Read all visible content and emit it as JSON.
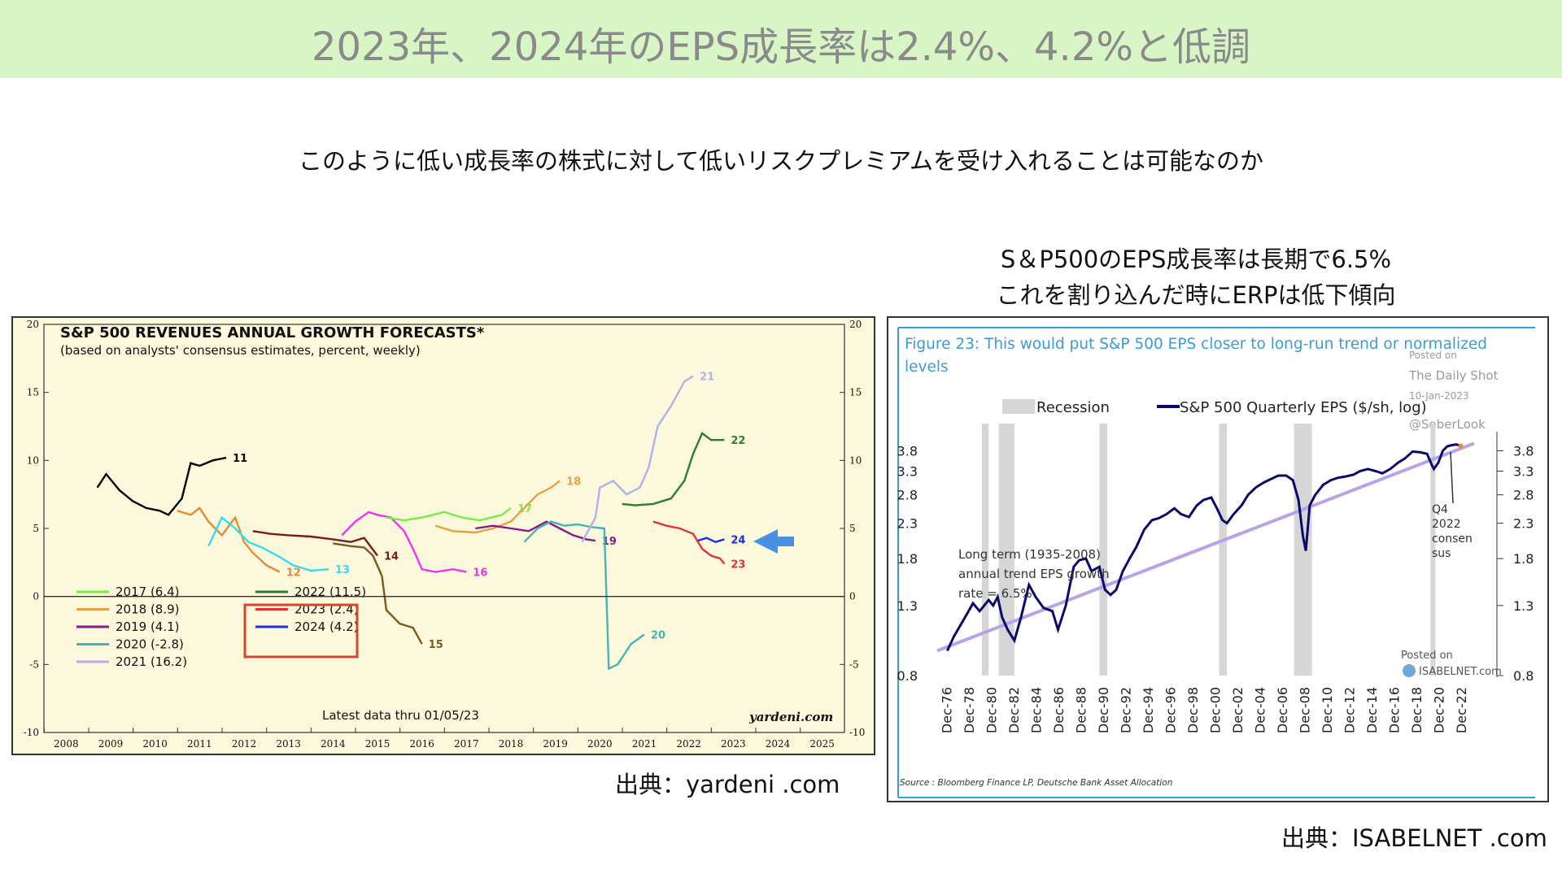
{
  "header": {
    "title": "2023年、2024年のEPS成長率は2.4%、4.2%と低調"
  },
  "subtitle": "このように低い成長率の株式に対して低いリスクプレミアムを受け入れることは可能なのか",
  "right_note": {
    "line1": "S＆P500のEPS成長率は長期で6.5%",
    "line2": "これを割り込んだ時にERPは低下傾向"
  },
  "sources": {
    "left": "出典：yardeni .com",
    "right": "出典：ISABELNET .com"
  },
  "colors": {
    "title_bg": "#d8f5c6",
    "chart_bg": "#fbf8dc",
    "arrow": "#4a90e2",
    "highlight_box": "#d9442c",
    "trend": "#b9a2e8",
    "eps_line": "#0a0a6e",
    "recession": "#d6d6d6",
    "right_title": "#3a9bd5"
  },
  "chart_data": [
    {
      "type": "line",
      "title": "S&P 500 REVENUES ANNUAL GROWTH FORECASTS*",
      "subtitle": "(based on analysts' consensus estimates, percent, weekly)",
      "note": "Latest data thru 01/05/23",
      "watermark": "yardeni.com",
      "xticks": [
        "2008",
        "2009",
        "2010",
        "2011",
        "2012",
        "2013",
        "2014",
        "2015",
        "2016",
        "2017",
        "2018",
        "2019",
        "2020",
        "2021",
        "2022",
        "2023",
        "2024",
        "2025"
      ],
      "yticks": [
        "20",
        "15",
        "10",
        "5",
        "0",
        "-5",
        "-10"
      ],
      "ylim": [
        -10,
        20
      ],
      "xlim": [
        2007.5,
        2025.5
      ],
      "legend": [
        "2017 (6.4)",
        "2018 (8.9)",
        "2019 (4.1)",
        "2020 (-2.8)",
        "2021 (16.2)",
        "2022 (11.5)",
        "2023 (2.4)",
        "2024 (4.2)"
      ],
      "series": [
        {
          "label": "11",
          "color": "#000000",
          "points": [
            [
              2008.7,
              8.0
            ],
            [
              2008.9,
              9.0
            ],
            [
              2009.2,
              7.8
            ],
            [
              2009.5,
              7.0
            ],
            [
              2009.8,
              6.5
            ],
            [
              2010.1,
              6.3
            ],
            [
              2010.3,
              6.0
            ],
            [
              2010.6,
              7.2
            ],
            [
              2010.8,
              9.8
            ],
            [
              2011.0,
              9.6
            ],
            [
              2011.3,
              10.0
            ],
            [
              2011.6,
              10.2
            ]
          ]
        },
        {
          "label": "12",
          "color": "#e58a33",
          "points": [
            [
              2010.5,
              6.3
            ],
            [
              2010.8,
              6.0
            ],
            [
              2011.0,
              6.5
            ],
            [
              2011.2,
              5.5
            ],
            [
              2011.5,
              4.5
            ],
            [
              2011.8,
              5.8
            ],
            [
              2012.0,
              4.0
            ],
            [
              2012.2,
              3.2
            ],
            [
              2012.5,
              2.3
            ],
            [
              2012.8,
              1.8
            ]
          ]
        },
        {
          "label": "13",
          "color": "#33ddee",
          "points": [
            [
              2011.2,
              3.7
            ],
            [
              2011.5,
              5.8
            ],
            [
              2011.8,
              5.0
            ],
            [
              2012.1,
              4.0
            ],
            [
              2012.4,
              3.6
            ],
            [
              2012.8,
              2.9
            ],
            [
              2013.1,
              2.3
            ],
            [
              2013.5,
              1.9
            ],
            [
              2013.9,
              2.0
            ]
          ]
        },
        {
          "label": "14",
          "color": "#7a1c1c",
          "points": [
            [
              2012.2,
              4.8
            ],
            [
              2012.6,
              4.6
            ],
            [
              2013.0,
              4.5
            ],
            [
              2013.5,
              4.4
            ],
            [
              2014.0,
              4.2
            ],
            [
              2014.4,
              4.0
            ],
            [
              2014.7,
              4.3
            ],
            [
              2015.0,
              3.0
            ]
          ]
        },
        {
          "label": "15",
          "color": "#7b5a22",
          "points": [
            [
              2014.0,
              3.9
            ],
            [
              2014.4,
              3.7
            ],
            [
              2014.7,
              3.6
            ],
            [
              2014.9,
              3.0
            ],
            [
              2015.1,
              1.5
            ],
            [
              2015.2,
              -1.0
            ],
            [
              2015.5,
              -2.0
            ],
            [
              2015.8,
              -2.3
            ],
            [
              2016.0,
              -3.5
            ]
          ]
        },
        {
          "label": "16",
          "color": "#ee33ee",
          "points": [
            [
              2014.2,
              4.5
            ],
            [
              2014.5,
              5.5
            ],
            [
              2014.8,
              6.2
            ],
            [
              2015.0,
              6.0
            ],
            [
              2015.3,
              5.8
            ],
            [
              2015.6,
              4.8
            ],
            [
              2015.8,
              3.5
            ],
            [
              2016.0,
              2.0
            ],
            [
              2016.3,
              1.8
            ],
            [
              2016.7,
              2.0
            ],
            [
              2017.0,
              1.8
            ]
          ]
        },
        {
          "label": "17",
          "color": "#77ee44",
          "points": [
            [
              2015.2,
              5.8
            ],
            [
              2015.6,
              5.6
            ],
            [
              2016.0,
              5.8
            ],
            [
              2016.5,
              6.2
            ],
            [
              2016.9,
              5.8
            ],
            [
              2017.3,
              5.6
            ],
            [
              2017.8,
              6.0
            ],
            [
              2018.0,
              6.5
            ]
          ]
        },
        {
          "label": "18",
          "color": "#e8a040",
          "points": [
            [
              2016.3,
              5.2
            ],
            [
              2016.7,
              4.8
            ],
            [
              2017.2,
              4.7
            ],
            [
              2017.6,
              5.0
            ],
            [
              2018.0,
              5.5
            ],
            [
              2018.3,
              6.5
            ],
            [
              2018.6,
              7.5
            ],
            [
              2018.9,
              8.0
            ],
            [
              2019.1,
              8.5
            ]
          ]
        },
        {
          "label": "19",
          "color": "#8a1a8a",
          "points": [
            [
              2017.2,
              5.0
            ],
            [
              2017.6,
              5.2
            ],
            [
              2018.0,
              5.0
            ],
            [
              2018.4,
              4.8
            ],
            [
              2018.8,
              5.5
            ],
            [
              2019.1,
              5.0
            ],
            [
              2019.4,
              4.5
            ],
            [
              2019.7,
              4.2
            ],
            [
              2019.9,
              4.1
            ]
          ]
        },
        {
          "label": "20",
          "color": "#44b5b5",
          "points": [
            [
              2018.3,
              4.0
            ],
            [
              2018.6,
              5.0
            ],
            [
              2018.9,
              5.5
            ],
            [
              2019.2,
              5.2
            ],
            [
              2019.5,
              5.3
            ],
            [
              2019.8,
              5.1
            ],
            [
              2020.1,
              5.0
            ],
            [
              2020.2,
              -5.3
            ],
            [
              2020.4,
              -5.0
            ],
            [
              2020.7,
              -3.5
            ],
            [
              2021.0,
              -2.8
            ]
          ]
        },
        {
          "label": "21",
          "color": "#b0b0ee",
          "points": [
            [
              2019.6,
              4.0
            ],
            [
              2019.9,
              5.8
            ],
            [
              2020.0,
              8.0
            ],
            [
              2020.3,
              8.5
            ],
            [
              2020.6,
              7.5
            ],
            [
              2020.9,
              8.0
            ],
            [
              2021.1,
              9.5
            ],
            [
              2021.3,
              12.5
            ],
            [
              2021.6,
              14.0
            ],
            [
              2021.9,
              15.8
            ],
            [
              2022.1,
              16.2
            ]
          ]
        },
        {
          "label": "22",
          "color": "#2e7d2e",
          "points": [
            [
              2020.5,
              6.8
            ],
            [
              2020.8,
              6.7
            ],
            [
              2021.2,
              6.8
            ],
            [
              2021.6,
              7.2
            ],
            [
              2021.9,
              8.5
            ],
            [
              2022.1,
              10.5
            ],
            [
              2022.3,
              12.0
            ],
            [
              2022.5,
              11.5
            ],
            [
              2022.8,
              11.5
            ]
          ]
        },
        {
          "label": "23",
          "color": "#e53333",
          "points": [
            [
              2021.2,
              5.5
            ],
            [
              2021.5,
              5.2
            ],
            [
              2021.8,
              5.0
            ],
            [
              2022.1,
              4.6
            ],
            [
              2022.3,
              3.5
            ],
            [
              2022.5,
              3.0
            ],
            [
              2022.7,
              2.8
            ],
            [
              2022.8,
              2.4
            ]
          ]
        },
        {
          "label": "24",
          "color": "#1a2ee5",
          "points": [
            [
              2022.2,
              4.1
            ],
            [
              2022.4,
              4.3
            ],
            [
              2022.6,
              4.0
            ],
            [
              2022.8,
              4.2
            ]
          ]
        }
      ]
    },
    {
      "type": "line",
      "title": "Figure 23: This would put S&P 500 EPS closer to long-run trend or normalized levels",
      "legend": [
        "Recession",
        "S&P 500 Quarterly EPS ($/sh, log)"
      ],
      "annotation": [
        "Long term (1935-2008)",
        "annual trend EPS growth",
        "rate = 6.5%"
      ],
      "callout": [
        "Q4",
        "2022",
        "consen",
        "sus"
      ],
      "watermark_lines": [
        "Posted on",
        "The Daily Shot",
        "10-Jan-2023",
        "@SoberLook"
      ],
      "watermark2": [
        "Posted on",
        "ISABELNET.com"
      ],
      "footnote": "Source : Bloomberg Finance LP, Deutsche Bank Asset Allocation",
      "yticks": [
        "3.8",
        "3.3",
        "2.8",
        "2.3",
        "1.8",
        "1.3",
        "0.8"
      ],
      "ylim": [
        0.8,
        4.1
      ],
      "xticks": [
        "Dec-76",
        "Dec-78",
        "Dec-80",
        "Dec-82",
        "Dec-84",
        "Dec-86",
        "Dec-88",
        "Dec-90",
        "Dec-92",
        "Dec-94",
        "Dec-96",
        "Dec-98",
        "Dec-00",
        "Dec-02",
        "Dec-04",
        "Dec-06",
        "Dec-08",
        "Dec-10",
        "Dec-12",
        "Dec-14",
        "Dec-16",
        "Dec-18",
        "Dec-20",
        "Dec-22"
      ],
      "xlim": [
        1976,
        2024
      ],
      "recessions": [
        [
          1980.0,
          1980.6
        ],
        [
          1981.5,
          1982.9
        ],
        [
          1990.5,
          1991.2
        ],
        [
          2001.2,
          2001.9
        ],
        [
          2007.9,
          2009.5
        ],
        [
          2020.1,
          2020.4
        ]
      ],
      "trend": [
        [
          1976,
          0.95
        ],
        [
          2024,
          4.0
        ]
      ],
      "eps": [
        [
          1976.9,
          0.95
        ],
        [
          1977.5,
          1.05
        ],
        [
          1978.5,
          1.2
        ],
        [
          1979.2,
          1.32
        ],
        [
          1979.8,
          1.25
        ],
        [
          1980.2,
          1.3
        ],
        [
          1980.6,
          1.35
        ],
        [
          1981.0,
          1.3
        ],
        [
          1981.4,
          1.38
        ],
        [
          1981.8,
          1.2
        ],
        [
          1982.3,
          1.1
        ],
        [
          1982.9,
          1.02
        ],
        [
          1983.5,
          1.2
        ],
        [
          1984.2,
          1.5
        ],
        [
          1984.8,
          1.38
        ],
        [
          1985.5,
          1.28
        ],
        [
          1986.3,
          1.25
        ],
        [
          1986.8,
          1.1
        ],
        [
          1987.5,
          1.3
        ],
        [
          1988.2,
          1.7
        ],
        [
          1988.7,
          1.78
        ],
        [
          1989.3,
          1.8
        ],
        [
          1989.8,
          1.65
        ],
        [
          1990.5,
          1.7
        ],
        [
          1991.0,
          1.45
        ],
        [
          1991.5,
          1.4
        ],
        [
          1992.0,
          1.45
        ],
        [
          1992.6,
          1.65
        ],
        [
          1993.2,
          1.8
        ],
        [
          1993.8,
          1.95
        ],
        [
          1994.5,
          2.2
        ],
        [
          1995.2,
          2.35
        ],
        [
          1995.8,
          2.38
        ],
        [
          1996.5,
          2.45
        ],
        [
          1997.2,
          2.55
        ],
        [
          1997.8,
          2.45
        ],
        [
          1998.5,
          2.4
        ],
        [
          1999.2,
          2.6
        ],
        [
          1999.8,
          2.7
        ],
        [
          2000.5,
          2.75
        ],
        [
          2001.0,
          2.55
        ],
        [
          2001.5,
          2.35
        ],
        [
          2001.9,
          2.3
        ],
        [
          2002.5,
          2.45
        ],
        [
          2003.2,
          2.6
        ],
        [
          2003.8,
          2.8
        ],
        [
          2004.5,
          2.95
        ],
        [
          2005.2,
          3.05
        ],
        [
          2005.8,
          3.12
        ],
        [
          2006.5,
          3.2
        ],
        [
          2007.2,
          3.2
        ],
        [
          2007.8,
          3.1
        ],
        [
          2008.3,
          2.7
        ],
        [
          2008.7,
          2.1
        ],
        [
          2008.95,
          1.9
        ],
        [
          2009.3,
          2.6
        ],
        [
          2009.8,
          2.8
        ],
        [
          2010.5,
          3.0
        ],
        [
          2011.2,
          3.1
        ],
        [
          2011.8,
          3.15
        ],
        [
          2012.5,
          3.18
        ],
        [
          2013.2,
          3.22
        ],
        [
          2013.8,
          3.3
        ],
        [
          2014.5,
          3.35
        ],
        [
          2015.2,
          3.3
        ],
        [
          2015.8,
          3.25
        ],
        [
          2016.5,
          3.35
        ],
        [
          2017.2,
          3.5
        ],
        [
          2017.8,
          3.6
        ],
        [
          2018.5,
          3.78
        ],
        [
          2019.2,
          3.76
        ],
        [
          2019.8,
          3.72
        ],
        [
          2020.2,
          3.45
        ],
        [
          2020.4,
          3.35
        ],
        [
          2020.8,
          3.5
        ],
        [
          2021.2,
          3.8
        ],
        [
          2021.6,
          3.92
        ],
        [
          2022.0,
          3.95
        ],
        [
          2022.4,
          3.97
        ],
        [
          2022.8,
          3.93
        ]
      ]
    }
  ]
}
